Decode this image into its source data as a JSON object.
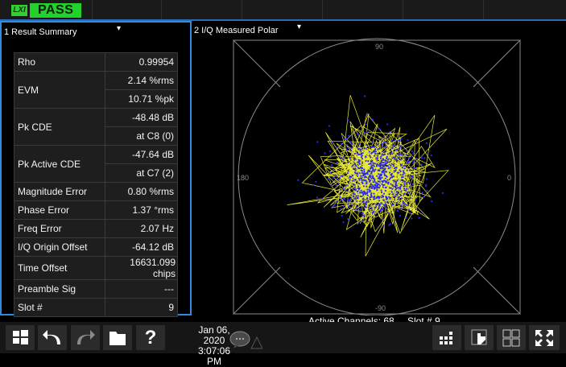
{
  "status": {
    "logo": "LXI",
    "pass": "PASS"
  },
  "left_window": {
    "title": "1 Result Summary",
    "dropdown_glyph": "▾",
    "rows": [
      {
        "label": "Rho",
        "values": [
          "0.99954"
        ]
      },
      {
        "label": "EVM",
        "values": [
          "2.14 %rms",
          "10.71 %pk"
        ]
      },
      {
        "label": "Pk CDE",
        "values": [
          "-48.48 dB",
          "at C8 (0)"
        ]
      },
      {
        "label": "Pk Active CDE",
        "values": [
          "-47.64 dB",
          "at C7 (2)"
        ]
      },
      {
        "label": "Magnitude Error",
        "values": [
          "0.80 %rms"
        ]
      },
      {
        "label": "Phase Error",
        "values": [
          "1.37 °rms"
        ]
      },
      {
        "label": "Freq Error",
        "values": [
          "2.07 Hz"
        ]
      },
      {
        "label": "I/Q Origin Offset",
        "values": [
          "-64.12 dB"
        ]
      },
      {
        "label": "Time Offset",
        "values": [
          "16631.099 chips"
        ]
      },
      {
        "label": "Preamble Sig",
        "values": [
          "---"
        ]
      },
      {
        "label": "Slot #",
        "values": [
          "9"
        ]
      }
    ]
  },
  "right_window": {
    "title": "2 I/Q Measured Polar",
    "dropdown_glyph": "▾",
    "angle_labels": {
      "top": "90",
      "left": "180",
      "right": "0",
      "bottom": "-90"
    },
    "footer": {
      "active_channels": "Active Channels: 68",
      "slot": "Slot # 9"
    },
    "colors": {
      "trace": "#e8e83a",
      "points": "#2a2af0",
      "grid": "#8a8a8a"
    }
  },
  "taskbar": {
    "date": "Jan 06, 2020",
    "time": "3:07:06 PM",
    "help_glyph": "?"
  }
}
